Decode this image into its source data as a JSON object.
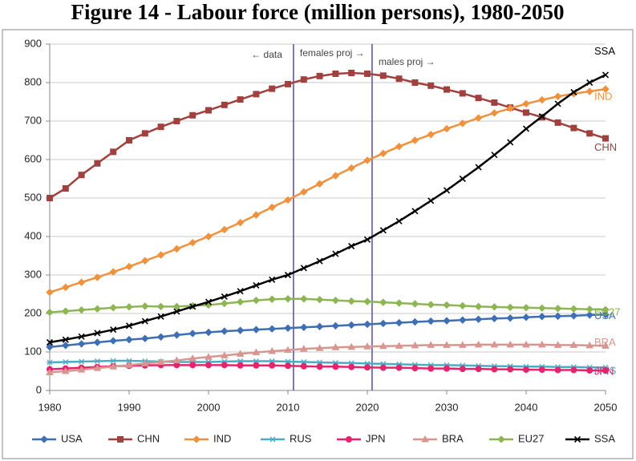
{
  "chart_data": {
    "type": "line",
    "title": "Figure 14 - Labour force (million persons), 1980-2050",
    "x": [
      1980,
      1982,
      1984,
      1986,
      1988,
      1990,
      1992,
      1994,
      1996,
      1998,
      2000,
      2002,
      2004,
      2006,
      2008,
      2010,
      2012,
      2014,
      2016,
      2018,
      2020,
      2022,
      2024,
      2026,
      2028,
      2030,
      2032,
      2034,
      2036,
      2038,
      2040,
      2042,
      2044,
      2046,
      2048,
      2050
    ],
    "xlim": [
      1980,
      2050
    ],
    "xticks": [
      1980,
      1990,
      2000,
      2010,
      2020,
      2030,
      2040,
      2050
    ],
    "ylim": [
      0,
      900
    ],
    "yticks": [
      0,
      100,
      200,
      300,
      400,
      500,
      600,
      700,
      800,
      900
    ],
    "grid": true,
    "annotations": [
      {
        "text": "← data",
        "x": 2010.7
      },
      {
        "text": "females proj →",
        "x": 2010.7
      },
      {
        "text": "males proj →",
        "x": 2020.6
      }
    ],
    "series": [
      {
        "name": "USA",
        "color": "#3e6eb4",
        "marker": "diamond",
        "values": [
          113,
          117,
          121,
          125,
          129,
          132,
          135,
          139,
          144,
          148,
          151,
          154,
          156,
          158,
          160,
          162,
          164,
          166,
          168,
          170,
          172,
          174,
          176,
          178,
          180,
          181,
          183,
          185,
          187,
          188,
          190,
          192,
          193,
          194,
          196,
          197
        ]
      },
      {
        "name": "CHN",
        "color": "#a0413f",
        "marker": "square",
        "values": [
          500,
          525,
          560,
          590,
          620,
          650,
          668,
          685,
          700,
          715,
          728,
          742,
          756,
          770,
          784,
          796,
          808,
          817,
          823,
          825,
          823,
          818,
          810,
          800,
          792,
          782,
          772,
          760,
          748,
          735,
          722,
          710,
          696,
          682,
          668,
          655
        ]
      },
      {
        "name": "IND",
        "color": "#f0913d",
        "marker": "diamond",
        "values": [
          255,
          268,
          281,
          294,
          308,
          322,
          337,
          352,
          368,
          384,
          400,
          418,
          436,
          456,
          476,
          495,
          516,
          537,
          558,
          578,
          598,
          616,
          634,
          650,
          665,
          680,
          694,
          708,
          721,
          733,
          745,
          755,
          764,
          771,
          777,
          783
        ]
      },
      {
        "name": "RUS",
        "color": "#4bacc6",
        "marker": "star",
        "values": [
          73,
          74,
          75,
          76,
          77,
          77,
          76,
          75,
          74,
          74,
          74,
          75,
          76,
          76,
          76,
          75,
          74,
          73,
          72,
          71,
          70,
          69,
          68,
          67,
          66,
          66,
          65,
          64,
          63,
          63,
          62,
          62,
          61,
          61,
          60,
          60
        ]
      },
      {
        "name": "JPN",
        "color": "#e6246e",
        "marker": "circle",
        "values": [
          55,
          57,
          59,
          61,
          63,
          64,
          65,
          66,
          66,
          66,
          66,
          66,
          65,
          65,
          65,
          64,
          63,
          62,
          62,
          61,
          60,
          59,
          59,
          58,
          57,
          57,
          56,
          56,
          55,
          55,
          54,
          54,
          53,
          53,
          52,
          52
        ]
      },
      {
        "name": "BRA",
        "color": "#d9958f",
        "marker": "triangle",
        "values": [
          47,
          50,
          54,
          58,
          62,
          66,
          70,
          74,
          78,
          83,
          87,
          91,
          95,
          99,
          102,
          105,
          108,
          110,
          112,
          113,
          114,
          115,
          116,
          117,
          118,
          118,
          118,
          119,
          119,
          119,
          119,
          119,
          118,
          118,
          117,
          116
        ]
      },
      {
        "name": "EU27",
        "color": "#8db653",
        "marker": "diamond",
        "values": [
          203,
          206,
          209,
          212,
          215,
          217,
          219,
          218,
          218,
          220,
          222,
          226,
          230,
          234,
          237,
          238,
          238,
          236,
          234,
          232,
          231,
          229,
          227,
          225,
          223,
          222,
          220,
          218,
          217,
          216,
          215,
          214,
          213,
          212,
          211,
          210
        ]
      },
      {
        "name": "SSA",
        "color": "#000000",
        "marker": "cross",
        "values": [
          125,
          132,
          140,
          149,
          158,
          168,
          180,
          192,
          205,
          218,
          230,
          244,
          258,
          273,
          288,
          300,
          318,
          336,
          355,
          375,
          392,
          416,
          440,
          466,
          493,
          520,
          550,
          580,
          612,
          645,
          680,
          712,
          745,
          775,
          800,
          820
        ]
      }
    ]
  }
}
